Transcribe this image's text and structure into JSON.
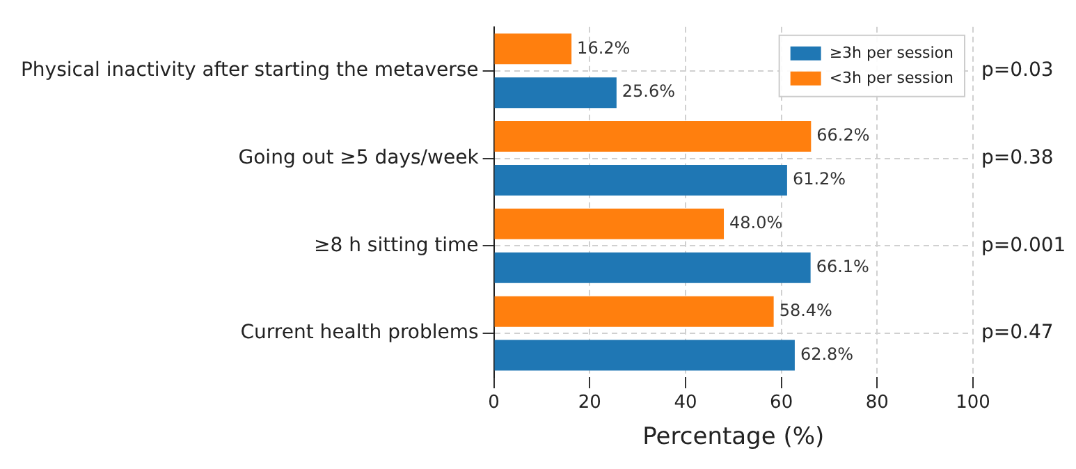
{
  "chart_data": {
    "type": "bar",
    "orientation": "horizontal",
    "xlabel": "Percentage (%)",
    "categories": [
      "Physical inactivity after starting the metaverse",
      "Going out ≥5 days/week",
      "≥8 h sitting time",
      "Current health problems"
    ],
    "series": [
      {
        "name": "<3h per session",
        "color": "#ff7f0e",
        "values": [
          16.2,
          66.2,
          48.0,
          58.4
        ],
        "value_labels": [
          "16.2%",
          "66.2%",
          "48.0%",
          "58.4%"
        ]
      },
      {
        "name": "≥3h per session",
        "color": "#1f77b4",
        "values": [
          25.6,
          61.2,
          66.1,
          62.8
        ],
        "value_labels": [
          "25.6%",
          "61.2%",
          "66.1%",
          "62.8%"
        ]
      }
    ],
    "xlim": [
      0,
      100
    ],
    "xticks": [
      0,
      20,
      40,
      60,
      80,
      100
    ],
    "grid": true,
    "legend": "top right",
    "annotations": [
      "p=0.03",
      "p=0.38",
      "p=0.001",
      "p=0.47"
    ]
  }
}
